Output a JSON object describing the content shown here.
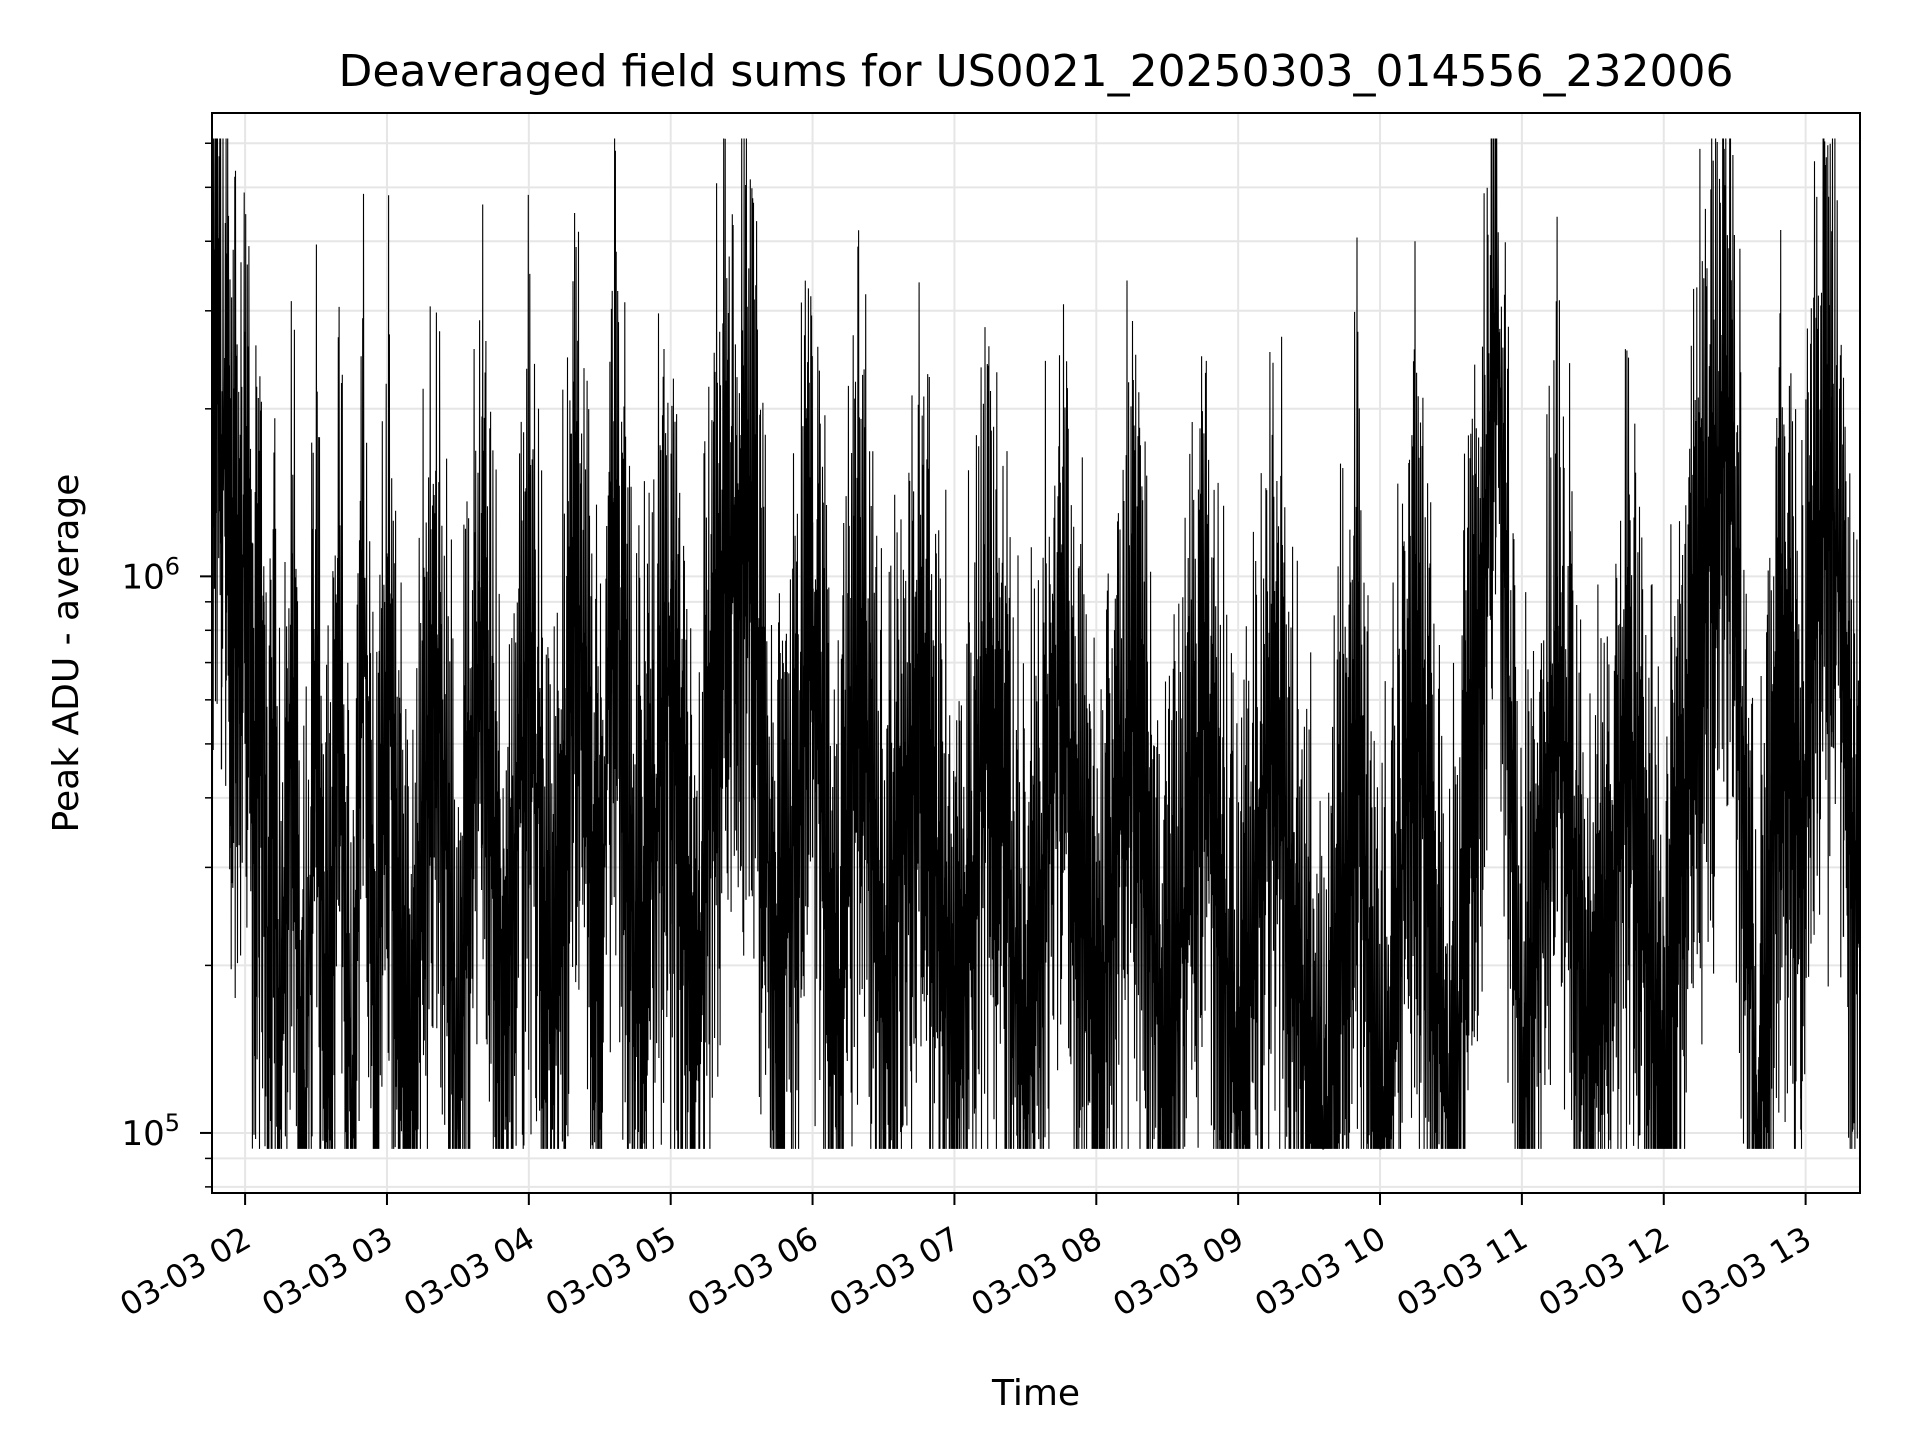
{
  "chart_data": {
    "type": "line",
    "title": "Deaveraged field sums for US0021_20250303_014556_232006",
    "xlabel": "Time",
    "ylabel": "Peak ADU - average",
    "y_scale": "log",
    "ylim": [
      78000,
      6800000
    ],
    "xlim": [
      "2025-03-03 01:46",
      "2025-03-03 13:23"
    ],
    "grid": true,
    "line_color": "#000000",
    "x_ticks": [
      {
        "t": "2025-03-03 02:00",
        "label": "03-03 02"
      },
      {
        "t": "2025-03-03 03:00",
        "label": "03-03 03"
      },
      {
        "t": "2025-03-03 04:00",
        "label": "03-03 04"
      },
      {
        "t": "2025-03-03 05:00",
        "label": "03-03 05"
      },
      {
        "t": "2025-03-03 06:00",
        "label": "03-03 06"
      },
      {
        "t": "2025-03-03 07:00",
        "label": "03-03 07"
      },
      {
        "t": "2025-03-03 08:00",
        "label": "03-03 08"
      },
      {
        "t": "2025-03-03 09:00",
        "label": "03-03 09"
      },
      {
        "t": "2025-03-03 10:00",
        "label": "03-03 10"
      },
      {
        "t": "2025-03-03 11:00",
        "label": "03-03 11"
      },
      {
        "t": "2025-03-03 12:00",
        "label": "03-03 12"
      },
      {
        "t": "2025-03-03 13:00",
        "label": "03-03 13"
      }
    ],
    "y_ticks": [
      {
        "value": 100000,
        "base": "10",
        "exp": "5"
      },
      {
        "value": 1000000,
        "base": "10",
        "exp": "6"
      }
    ],
    "series": [
      {
        "points": [
          [
            "2025-03-03 01:46",
            1500000
          ],
          [
            "2025-03-03 01:47",
            3800000
          ],
          [
            "2025-03-03 01:48",
            5200000
          ],
          [
            "2025-03-03 01:50",
            1800000
          ],
          [
            "2025-03-03 01:52",
            2600000
          ],
          [
            "2025-03-03 01:54",
            1300000
          ],
          [
            "2025-03-03 01:56",
            1700000
          ],
          [
            "2025-03-03 01:58",
            1200000
          ],
          [
            "2025-03-03 02:00",
            2000000
          ],
          [
            "2025-03-03 02:02",
            1500000
          ],
          [
            "2025-03-03 02:04",
            550000
          ],
          [
            "2025-03-03 02:06",
            700000
          ],
          [
            "2025-03-03 02:08",
            900000
          ],
          [
            "2025-03-03 02:10",
            200000
          ],
          [
            "2025-03-03 02:12",
            700000
          ],
          [
            "2025-03-03 02:15",
            160000
          ],
          [
            "2025-03-03 02:20",
            1100000
          ],
          [
            "2025-03-03 02:25",
            130000
          ],
          [
            "2025-03-03 02:30",
            1200000
          ],
          [
            "2025-03-03 02:35",
            150000
          ],
          [
            "2025-03-03 02:40",
            1000000
          ],
          [
            "2025-03-03 02:45",
            120000
          ],
          [
            "2025-03-03 02:50",
            1350000
          ],
          [
            "2025-03-03 02:55",
            160000
          ],
          [
            "2025-03-03 03:00",
            1100000
          ],
          [
            "2025-03-03 03:10",
            140000
          ],
          [
            "2025-03-03 03:20",
            1250000
          ],
          [
            "2025-03-03 03:30",
            150000
          ],
          [
            "2025-03-03 03:40",
            1300000
          ],
          [
            "2025-03-03 03:50",
            200000
          ],
          [
            "2025-03-03 04:00",
            1100000
          ],
          [
            "2025-03-03 04:10",
            180000
          ],
          [
            "2025-03-03 04:20",
            1500000
          ],
          [
            "2025-03-03 04:30",
            230000
          ],
          [
            "2025-03-03 04:36",
            1900000
          ],
          [
            "2025-03-03 04:45",
            250000
          ],
          [
            "2025-03-03 05:00",
            950000
          ],
          [
            "2025-03-03 05:10",
            180000
          ],
          [
            "2025-03-03 05:20",
            1300000
          ],
          [
            "2025-03-03 05:35",
            1600000
          ],
          [
            "2025-03-03 05:45",
            200000
          ],
          [
            "2025-03-03 06:00",
            1250000
          ],
          [
            "2025-03-03 06:10",
            200000
          ],
          [
            "2025-03-03 06:20",
            1200000
          ],
          [
            "2025-03-03 06:30",
            230000
          ],
          [
            "2025-03-03 06:45",
            1000000
          ],
          [
            "2025-03-03 07:00",
            200000
          ],
          [
            "2025-03-03 07:15",
            900000
          ],
          [
            "2025-03-03 07:30",
            170000
          ],
          [
            "2025-03-03 07:45",
            1000000
          ],
          [
            "2025-03-03 08:00",
            180000
          ],
          [
            "2025-03-03 08:15",
            950000
          ],
          [
            "2025-03-03 08:30",
            160000
          ],
          [
            "2025-03-03 08:45",
            900000
          ],
          [
            "2025-03-03 09:00",
            150000
          ],
          [
            "2025-03-03 09:15",
            850000
          ],
          [
            "2025-03-03 09:35",
            96000
          ],
          [
            "2025-03-03 09:50",
            800000
          ],
          [
            "2025-03-03 10:00",
            110000
          ],
          [
            "2025-03-03 10:15",
            900000
          ],
          [
            "2025-03-03 10:30",
            120000
          ],
          [
            "2025-03-03 10:45",
            1800000
          ],
          [
            "2025-03-03 10:49",
            4700000
          ],
          [
            "2025-03-03 11:00",
            150000
          ],
          [
            "2025-03-03 11:15",
            1000000
          ],
          [
            "2025-03-03 11:30",
            160000
          ],
          [
            "2025-03-03 11:45",
            800000
          ],
          [
            "2025-03-03 12:00",
            150000
          ],
          [
            "2025-03-03 12:15",
            1200000
          ],
          [
            "2025-03-03 12:28",
            2900000
          ],
          [
            "2025-03-03 12:40",
            130000
          ],
          [
            "2025-03-03 12:50",
            1100000
          ],
          [
            "2025-03-03 12:58",
            400000
          ],
          [
            "2025-03-03 13:05",
            1500000
          ],
          [
            "2025-03-03 13:11",
            2100000
          ],
          [
            "2025-03-03 13:16",
            900000
          ],
          [
            "2025-03-03 13:20",
            300000
          ],
          [
            "2025-03-03 13:23",
            800000
          ]
        ]
      }
    ]
  }
}
